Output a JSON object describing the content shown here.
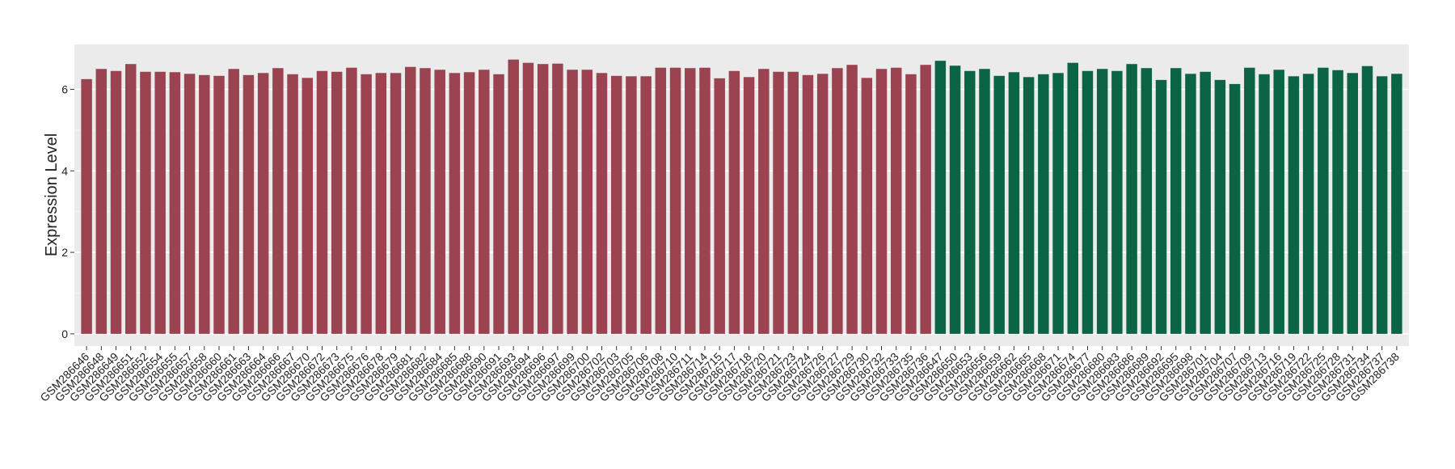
{
  "chart_data": {
    "type": "bar",
    "y_label": "Expression Level",
    "categories": [
      "GSM286646",
      "GSM286648",
      "GSM286649",
      "GSM286651",
      "GSM286652",
      "GSM286654",
      "GSM286655",
      "GSM286657",
      "GSM286658",
      "GSM286660",
      "GSM286661",
      "GSM286663",
      "GSM286664",
      "GSM286666",
      "GSM286667",
      "GSM286670",
      "GSM286672",
      "GSM286673",
      "GSM286675",
      "GSM286676",
      "GSM286678",
      "GSM286679",
      "GSM286681",
      "GSM286682",
      "GSM286684",
      "GSM286685",
      "GSM286688",
      "GSM286690",
      "GSM286691",
      "GSM286693",
      "GSM286694",
      "GSM286696",
      "GSM286697",
      "GSM286699",
      "GSM286700",
      "GSM286702",
      "GSM286703",
      "GSM286705",
      "GSM286706",
      "GSM286708",
      "GSM286710",
      "GSM286711",
      "GSM286714",
      "GSM286715",
      "GSM286717",
      "GSM286718",
      "GSM286720",
      "GSM286721",
      "GSM286723",
      "GSM286724",
      "GSM286726",
      "GSM286727",
      "GSM286729",
      "GSM286730",
      "GSM286732",
      "GSM286733",
      "GSM286735",
      "GSM286736",
      "GSM286647",
      "GSM286650",
      "GSM286653",
      "GSM286656",
      "GSM286659",
      "GSM286662",
      "GSM286665",
      "GSM286668",
      "GSM286671",
      "GSM286674",
      "GSM286677",
      "GSM286680",
      "GSM286683",
      "GSM286686",
      "GSM286689",
      "GSM286692",
      "GSM286695",
      "GSM286698",
      "GSM286701",
      "GSM286704",
      "GSM286707",
      "GSM286709",
      "GSM286713",
      "GSM286716",
      "GSM286719",
      "GSM286722",
      "GSM286725",
      "GSM286728",
      "GSM286731",
      "GSM286734",
      "GSM286737",
      "GSM286738"
    ],
    "values": [
      6.25,
      6.5,
      6.45,
      6.62,
      6.43,
      6.43,
      6.42,
      6.38,
      6.35,
      6.33,
      6.5,
      6.35,
      6.4,
      6.52,
      6.37,
      6.28,
      6.45,
      6.43,
      6.53,
      6.37,
      6.4,
      6.4,
      6.55,
      6.52,
      6.48,
      6.4,
      6.42,
      6.48,
      6.37,
      6.73,
      6.65,
      6.62,
      6.63,
      6.48,
      6.48,
      6.4,
      6.33,
      6.32,
      6.32,
      6.53,
      6.53,
      6.52,
      6.53,
      6.27,
      6.45,
      6.3,
      6.5,
      6.43,
      6.43,
      6.35,
      6.38,
      6.52,
      6.6,
      6.28,
      6.5,
      6.53,
      6.37,
      6.6,
      6.7,
      6.58,
      6.45,
      6.5,
      6.33,
      6.42,
      6.3,
      6.37,
      6.4,
      6.65,
      6.45,
      6.5,
      6.45,
      6.62,
      6.52,
      6.23,
      6.52,
      6.38,
      6.43,
      6.23,
      6.13,
      6.53,
      6.37,
      6.48,
      6.32,
      6.38,
      6.53,
      6.47,
      6.4,
      6.57,
      6.32,
      6.38
    ],
    "colors": [
      "#9b4350",
      "#9b4350",
      "#9b4350",
      "#9b4350",
      "#9b4350",
      "#9b4350",
      "#9b4350",
      "#9b4350",
      "#9b4350",
      "#9b4350",
      "#9b4350",
      "#9b4350",
      "#9b4350",
      "#9b4350",
      "#9b4350",
      "#9b4350",
      "#9b4350",
      "#9b4350",
      "#9b4350",
      "#9b4350",
      "#9b4350",
      "#9b4350",
      "#9b4350",
      "#9b4350",
      "#9b4350",
      "#9b4350",
      "#9b4350",
      "#9b4350",
      "#9b4350",
      "#9b4350",
      "#9b4350",
      "#9b4350",
      "#9b4350",
      "#9b4350",
      "#9b4350",
      "#9b4350",
      "#9b4350",
      "#9b4350",
      "#9b4350",
      "#9b4350",
      "#9b4350",
      "#9b4350",
      "#9b4350",
      "#9b4350",
      "#9b4350",
      "#9b4350",
      "#9b4350",
      "#9b4350",
      "#9b4350",
      "#9b4350",
      "#9b4350",
      "#9b4350",
      "#9b4350",
      "#9b4350",
      "#9b4350",
      "#9b4350",
      "#9b4350",
      "#9b4350",
      "#0b6544",
      "#0b6544",
      "#0b6544",
      "#0b6544",
      "#0b6544",
      "#0b6544",
      "#0b6544",
      "#0b6544",
      "#0b6544",
      "#0b6544",
      "#0b6544",
      "#0b6544",
      "#0b6544",
      "#0b6544",
      "#0b6544",
      "#0b6544",
      "#0b6544",
      "#0b6544",
      "#0b6544",
      "#0b6544",
      "#0b6544",
      "#0b6544",
      "#0b6544",
      "#0b6544",
      "#0b6544",
      "#0b6544",
      "#0b6544",
      "#0b6544",
      "#0b6544",
      "#0b6544",
      "#0b6544",
      "#0b6544"
    ],
    "ylim": [
      -0.3,
      7.1
    ],
    "yticks": [
      0,
      2,
      4,
      6
    ],
    "yminor": [
      1,
      3,
      5
    ],
    "grid": true
  }
}
